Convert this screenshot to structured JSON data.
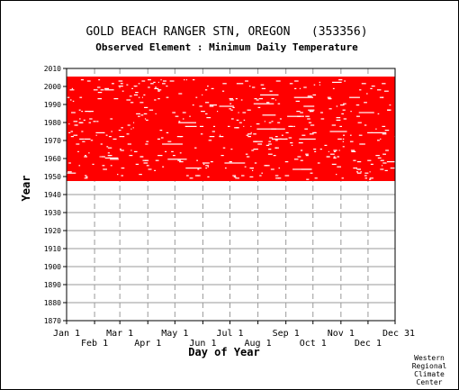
{
  "chart_data": {
    "type": "scatter",
    "title": "GOLD BEACH RANGER STN, OREGON   (353356)",
    "subtitle": "Observed Element : Minimum Daily Temperature",
    "xlabel": "Day of Year",
    "ylabel": "Year",
    "credit": [
      "Western",
      "Regional",
      "Climate",
      "Center"
    ],
    "x_ticks_upper": [
      "Jan 1",
      "Mar 1",
      "May 1",
      "Jul 1",
      "Sep 1",
      "Nov 1",
      "Dec 31"
    ],
    "x_ticks_lower": [
      "Feb 1",
      "Apr 1",
      "Jun 1",
      "Aug 1",
      "Oct 1",
      "Dec 1"
    ],
    "x_tick_days": [
      1,
      32,
      60,
      91,
      121,
      152,
      182,
      213,
      244,
      274,
      305,
      335,
      365
    ],
    "xlim": [
      1,
      365
    ],
    "ylim": [
      1870,
      2010
    ],
    "y_ticks": [
      1870,
      1880,
      1890,
      1900,
      1910,
      1920,
      1930,
      1940,
      1950,
      1960,
      1970,
      1980,
      1990,
      2000,
      2010
    ],
    "grid": true,
    "data_color": "#ff0000",
    "record_span": [
      1948,
      2005
    ],
    "series": [
      {
        "values": [
          {
            "year_start": 1948,
            "year_end": 2005,
            "day_start": 1,
            "day_end": 365
          }
        ]
      }
    ]
  }
}
